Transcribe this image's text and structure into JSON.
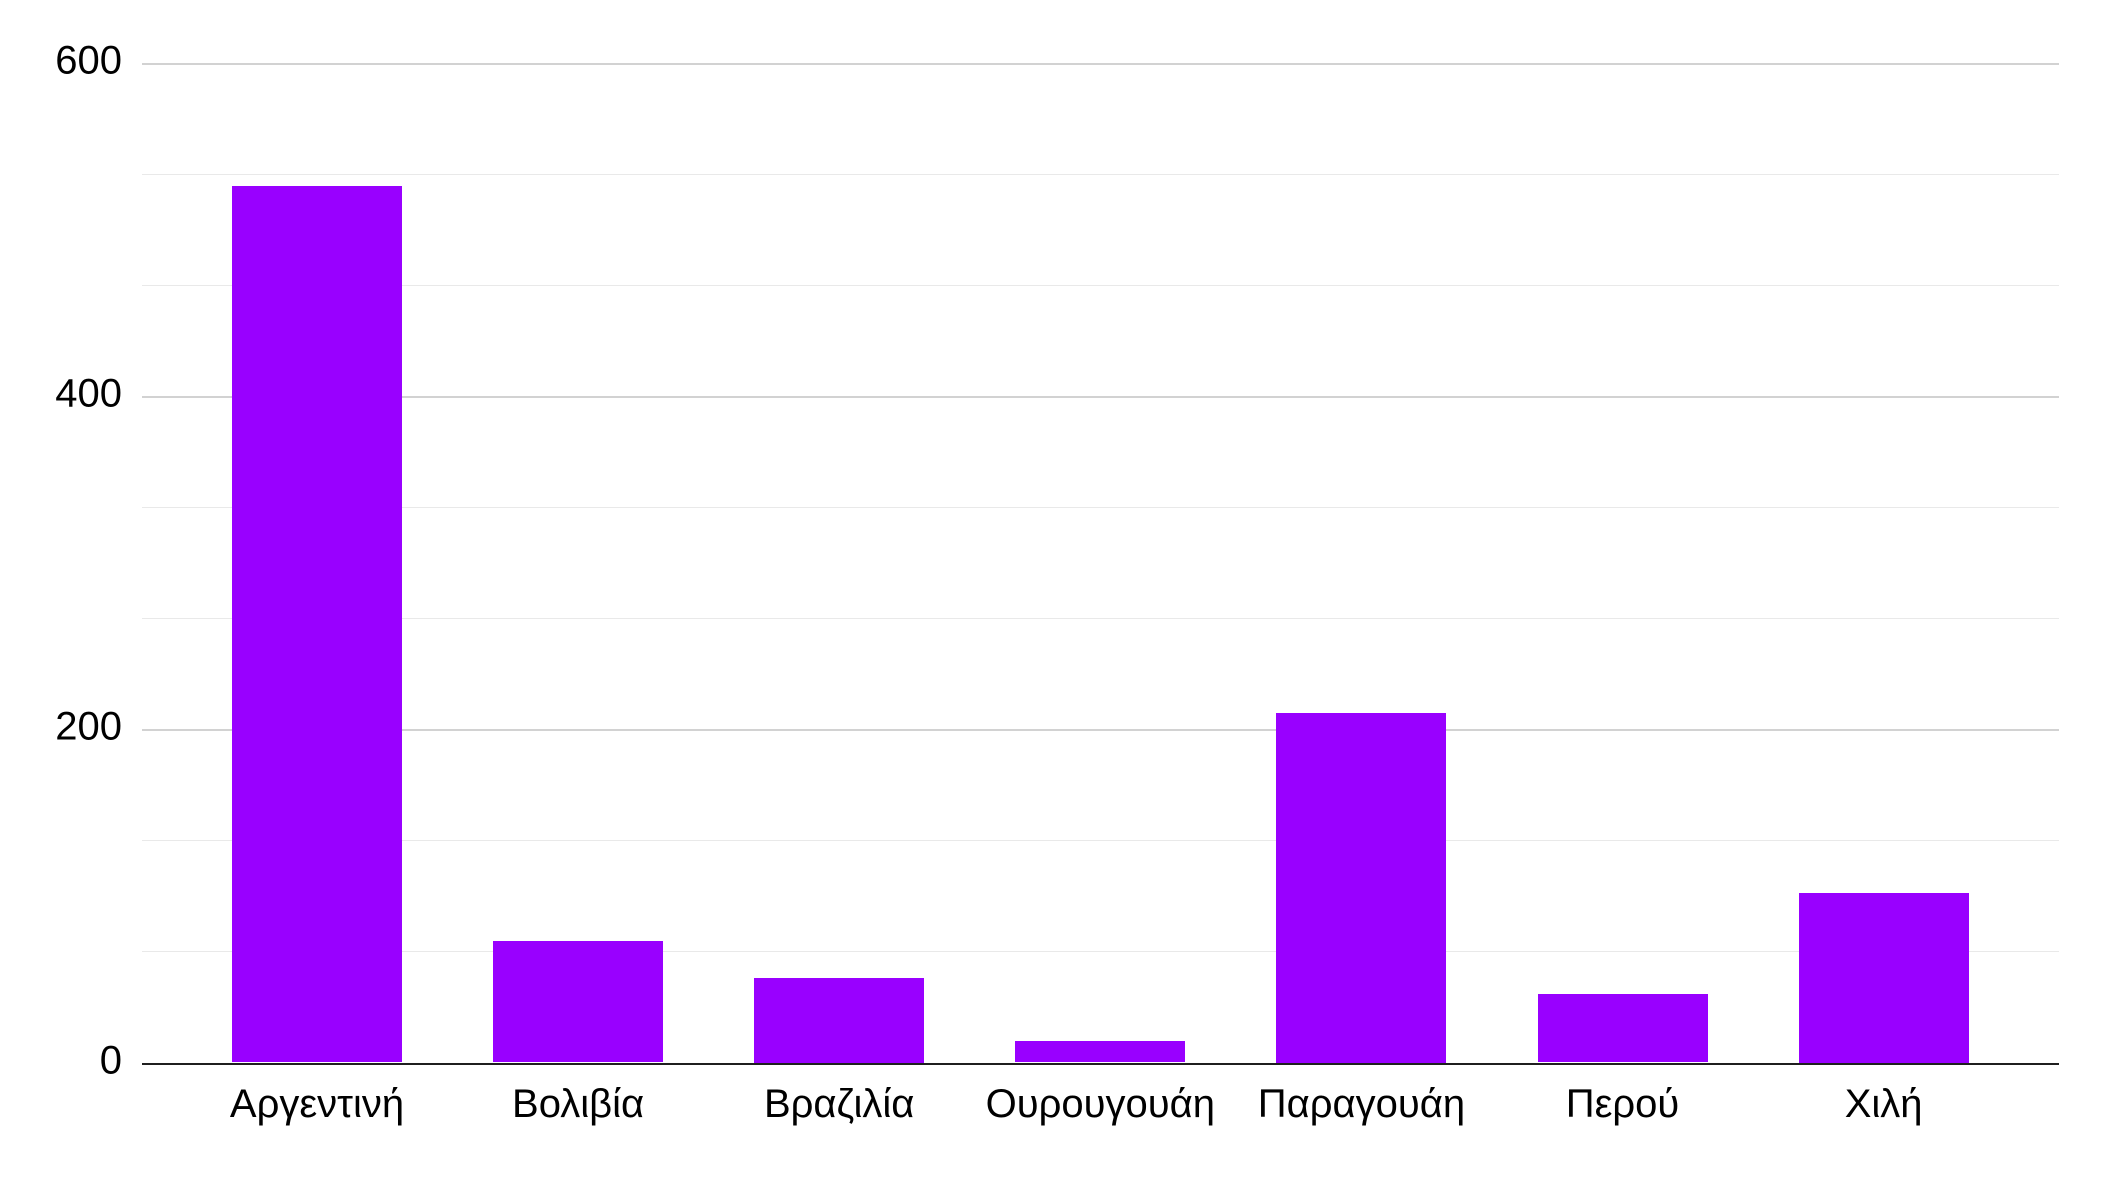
{
  "chart_data": {
    "type": "bar",
    "categories": [
      "Αργεντινή",
      "Βολιβία",
      "Βραζιλία",
      "Ουρουγουάη",
      "Παραγουάη",
      "Περού",
      "Χιλή"
    ],
    "values": [
      526,
      73,
      51,
      13,
      210,
      41,
      102
    ],
    "title": "",
    "xlabel": "",
    "ylabel": "",
    "ylim": [
      0,
      600
    ],
    "y_ticks": [
      0,
      200,
      400,
      600
    ],
    "y_minor_divisions_per_interval": 3,
    "grid": true,
    "legend": false,
    "colors": {
      "bar": "#9900FF",
      "grid_major": "#d2d2d2",
      "grid_minor": "#e9e9e9",
      "axis_line": "#1f1f1f",
      "text": "#000000",
      "background": "#ffffff"
    }
  }
}
